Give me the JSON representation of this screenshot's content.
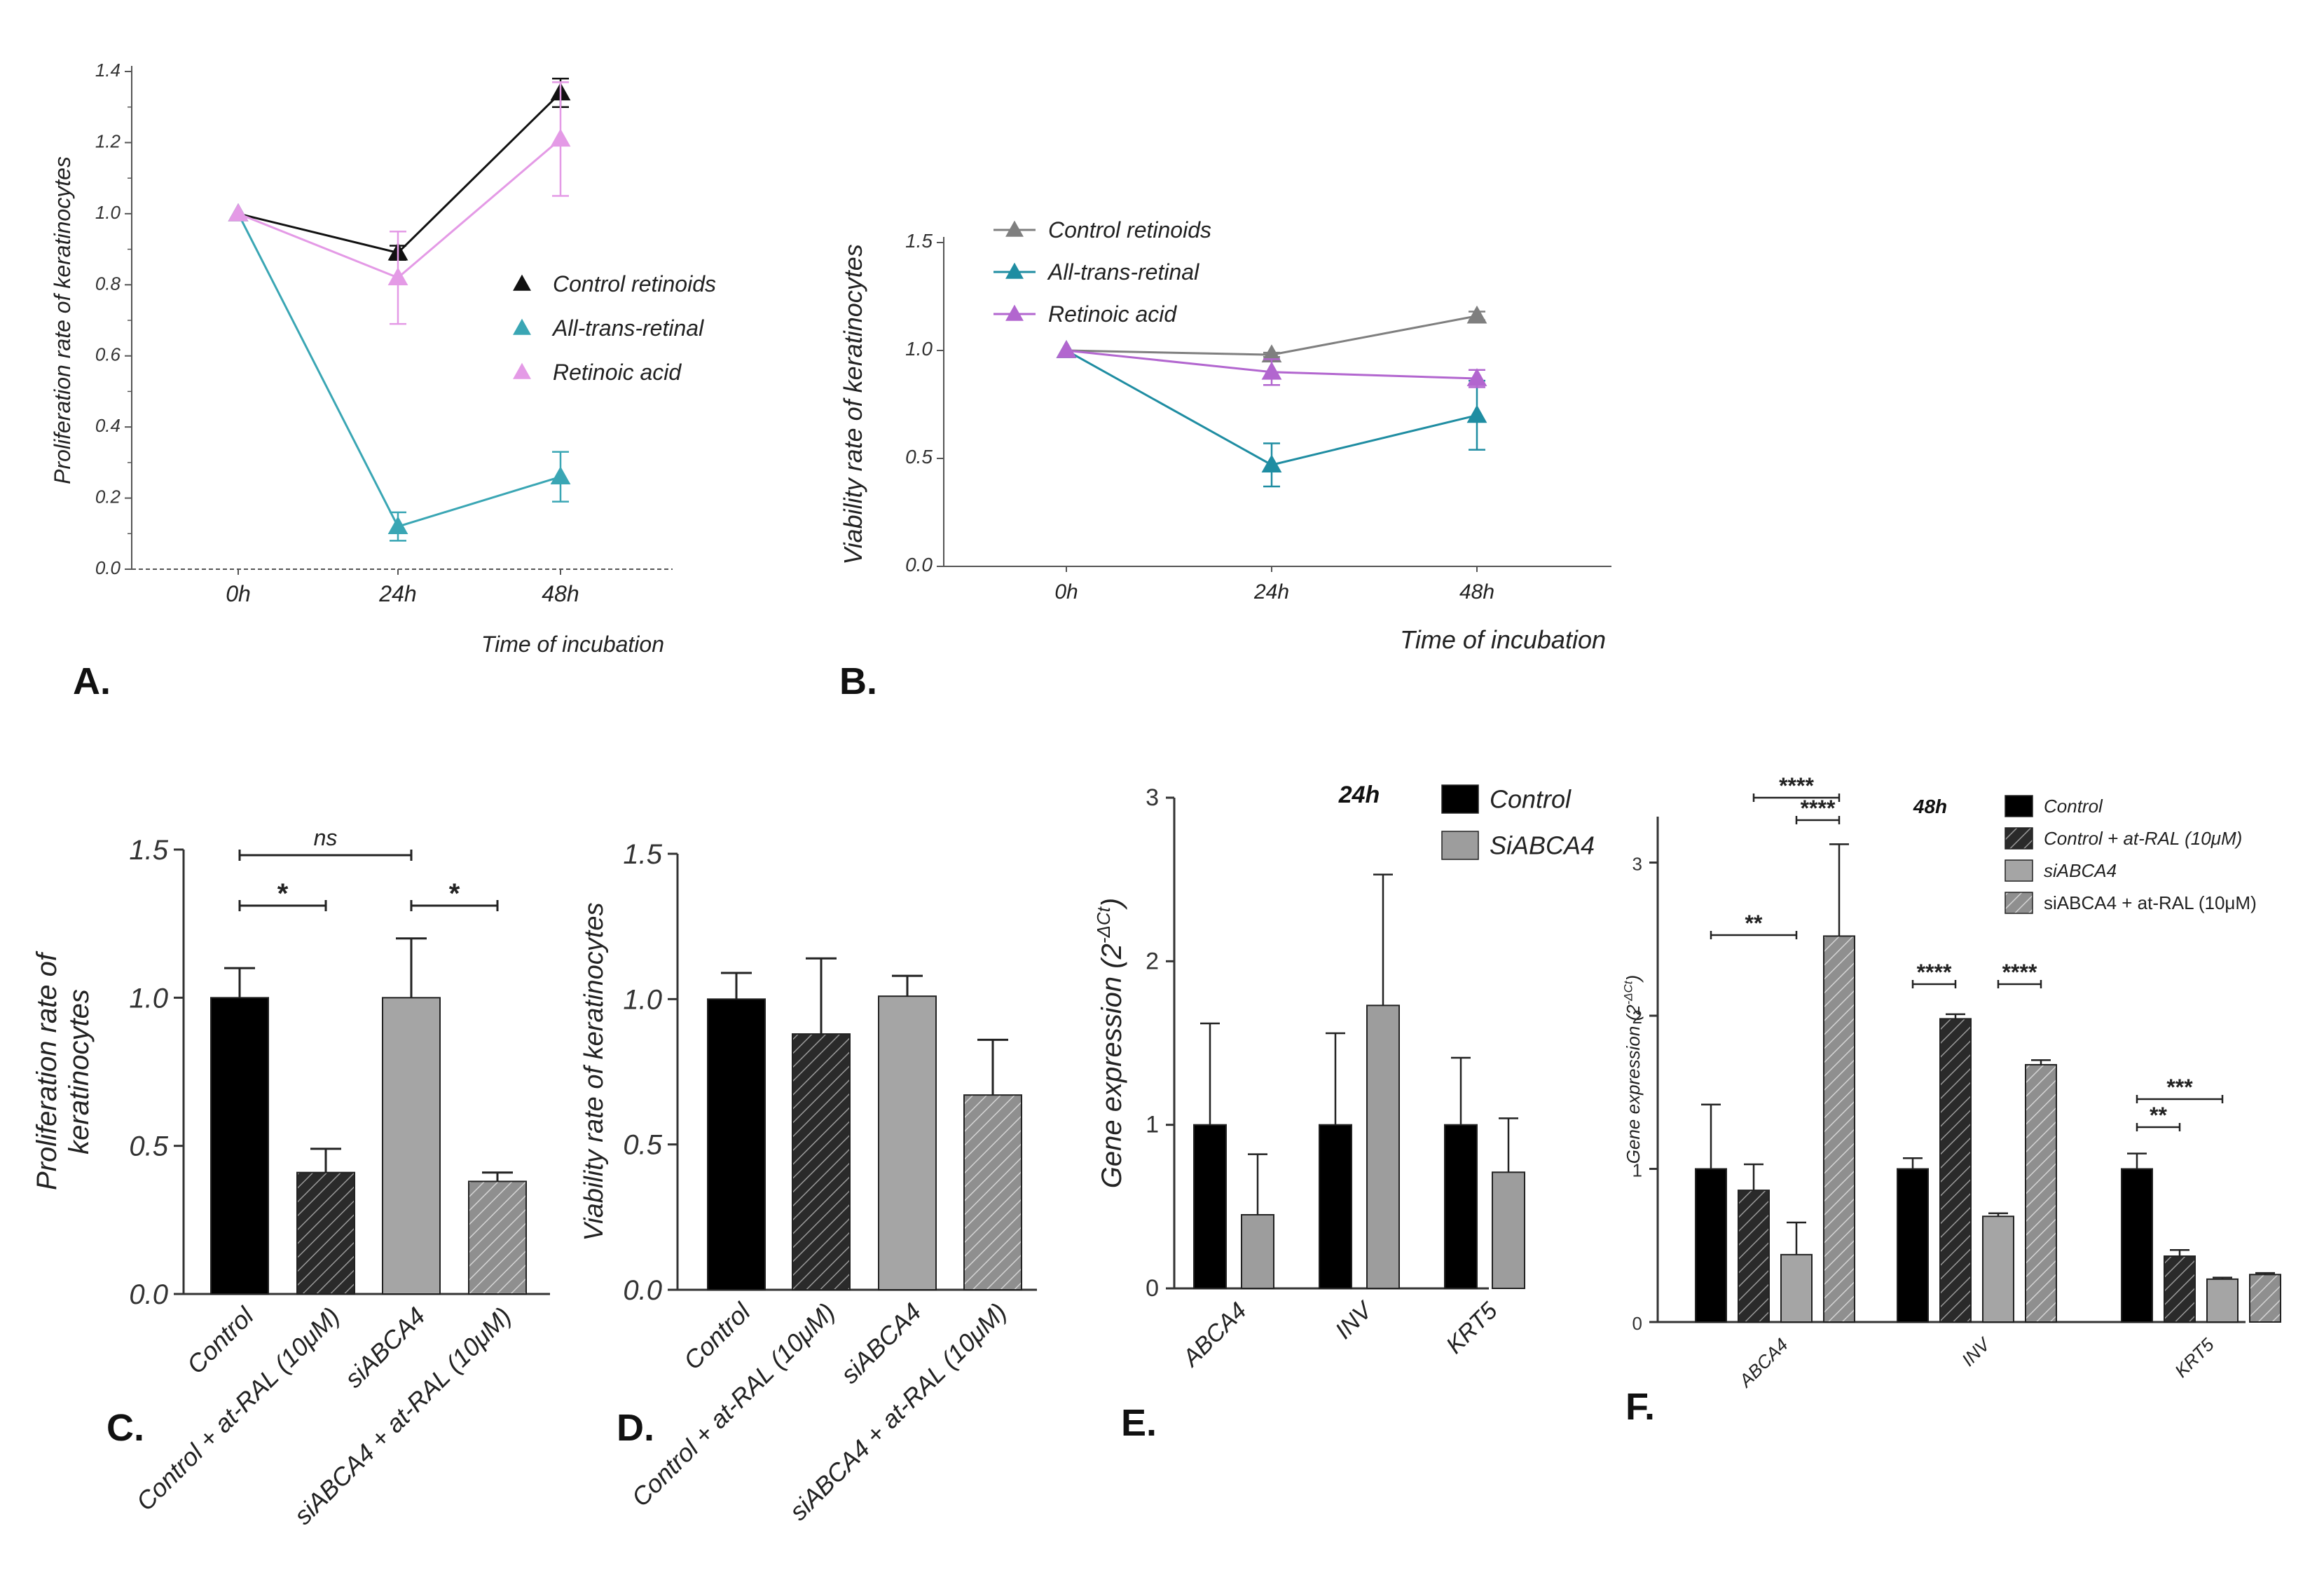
{
  "chart_data": [
    {
      "panel": "A.",
      "type": "line",
      "ylabel": "Proliferation rate of keratinocytes",
      "xlabel": "Time of incubation",
      "categories": [
        "0h",
        "24h",
        "48h"
      ],
      "ylim": [
        0,
        1.4
      ],
      "yticks": [
        "0.0",
        "0.2",
        "0.4",
        "0.6",
        "0.8",
        "1.0",
        "1.2",
        "1.4"
      ],
      "legend_position": "right",
      "series": [
        {
          "name": "Control retinoids",
          "values": [
            1.0,
            0.89,
            1.34
          ],
          "errors": [
            0,
            0.02,
            0.04
          ],
          "color": "#111111"
        },
        {
          "name": "All-trans-retinal",
          "values": [
            1.0,
            0.12,
            0.26
          ],
          "errors": [
            0,
            0.04,
            0.07
          ],
          "color": "#3aa6b4"
        },
        {
          "name": "Retinoic acid",
          "values": [
            1.0,
            0.82,
            1.21
          ],
          "errors": [
            0,
            0.13,
            0.16
          ],
          "color": "#e49ae6"
        }
      ]
    },
    {
      "panel": "B.",
      "type": "line",
      "ylabel": "Viability rate of keratinocytes",
      "xlabel": "Time of incubation",
      "categories": [
        "0h",
        "24h",
        "48h"
      ],
      "ylim": [
        0,
        1.5
      ],
      "yticks": [
        "0.0",
        "0.5",
        "1.0",
        "1.5"
      ],
      "legend_position": "top-left",
      "series": [
        {
          "name": "Control retinoids",
          "values": [
            1.0,
            0.98,
            1.16
          ],
          "errors": [
            0,
            0.01,
            0.02
          ],
          "color": "#7f7f7f"
        },
        {
          "name": "All-trans-retinal",
          "values": [
            1.0,
            0.47,
            0.7
          ],
          "errors": [
            0,
            0.1,
            0.16
          ],
          "color": "#1f8da2"
        },
        {
          "name": "Retinoic acid",
          "values": [
            1.0,
            0.9,
            0.87
          ],
          "errors": [
            0,
            0.06,
            0.04
          ],
          "color": "#b266cf"
        }
      ]
    },
    {
      "panel": "C.",
      "type": "bar",
      "ylabel": "Proliferation rate of keratinocytes",
      "ylabel_lines": [
        "Proliferation rate of",
        "keratinocytes"
      ],
      "categories": [
        "Control",
        "Control + at-RAL (10μM)",
        "siABCA4",
        "siABCA4 + at-RAL (10μM)"
      ],
      "values": [
        1.0,
        0.41,
        1.0,
        0.38
      ],
      "errors": [
        0.1,
        0.08,
        0.2,
        0.03
      ],
      "ylim": [
        0,
        1.5
      ],
      "yticks": [
        "0.0",
        "0.5",
        "1.0",
        "1.5"
      ],
      "significance": [
        {
          "label": "ns",
          "from": 0,
          "to": 2
        },
        {
          "label": "*",
          "from": 0,
          "to": 1
        },
        {
          "label": "*",
          "from": 2,
          "to": 3
        }
      ]
    },
    {
      "panel": "D.",
      "type": "bar",
      "ylabel": "Viability rate of keratinocytes",
      "categories": [
        "Control",
        "Control + at-RAL (10μM)",
        "siABCA4",
        "siABCA4 + at-RAL (10μM)"
      ],
      "values": [
        1.0,
        0.88,
        1.01,
        0.67
      ],
      "errors": [
        0.09,
        0.26,
        0.07,
        0.19
      ],
      "ylim": [
        0,
        1.5
      ],
      "yticks": [
        "0.0",
        "0.5",
        "1.0",
        "1.5"
      ]
    },
    {
      "panel": "E.",
      "type": "bar",
      "title": "24h",
      "ylabel": "Gene expression (2",
      "ylabel_sup": "-ΔCt",
      "ylabel_close": ")",
      "categories": [
        "ABCA4",
        "INV",
        "KRT5"
      ],
      "ylim": [
        0,
        3
      ],
      "yticks": [
        "0",
        "1",
        "2",
        "3"
      ],
      "legend_position": "top-right",
      "series": [
        {
          "name": "Control",
          "values": [
            1.0,
            1.0,
            1.0
          ],
          "errors": [
            0.62,
            0.56,
            0.41
          ],
          "color": "#000000"
        },
        {
          "name": "SiABCA4",
          "values": [
            0.45,
            1.73,
            0.71
          ],
          "errors": [
            0.37,
            0.8,
            0.33
          ],
          "color": "#9d9d9d"
        }
      ]
    },
    {
      "panel": "F.",
      "type": "bar",
      "title": "48h",
      "ylabel": "Gene expression (2",
      "ylabel_sup": "-ΔCt",
      "ylabel_close": ")",
      "categories": [
        "ABCA4",
        "INV",
        "KRT5"
      ],
      "ylim": [
        0,
        3.3
      ],
      "yticks": [
        "0",
        "1",
        "2",
        "3"
      ],
      "legend_position": "top-right",
      "series": [
        {
          "name": "Control",
          "values": [
            1.0,
            1.0,
            1.0
          ],
          "errors": [
            0.42,
            0.07,
            0.1
          ],
          "color": "#000000"
        },
        {
          "name": "Control + at-RAL (10μM)",
          "values": [
            0.86,
            1.98,
            0.43
          ],
          "errors": [
            0.17,
            0.03,
            0.04
          ],
          "color": "#2e2e2e"
        },
        {
          "name": "siABCA4",
          "values": [
            0.44,
            0.69,
            0.28
          ],
          "errors": [
            0.21,
            0.02,
            0.01
          ],
          "color": "#a2a2a2"
        },
        {
          "name": "siABCA4 + at-RAL (10μM)",
          "values": [
            2.52,
            1.68,
            0.31
          ],
          "errors": [
            0.6,
            0.03,
            0.01
          ],
          "color": "#858585"
        }
      ],
      "significance": [
        {
          "label": "****",
          "group": 0,
          "from": 1,
          "to": 3
        },
        {
          "label": "****",
          "group": 0,
          "from": 2,
          "to": 3
        },
        {
          "label": "**",
          "group": 0,
          "from": 0,
          "to": 2
        },
        {
          "label": "****",
          "group": 1,
          "from": 0,
          "to": 1
        },
        {
          "label": "****",
          "group": 1,
          "from": 2,
          "to": 3
        },
        {
          "label": "***",
          "group": 2,
          "from": 0,
          "to": 2
        },
        {
          "label": "**",
          "group": 2,
          "from": 0,
          "to": 1
        }
      ]
    }
  ]
}
